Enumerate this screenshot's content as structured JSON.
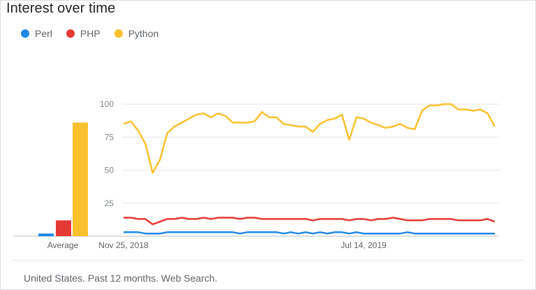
{
  "title": "Interest over time",
  "footer": "United States. Past 12 months. Web Search.",
  "legend": [
    {
      "name": "Perl",
      "color": "#1e88e5"
    },
    {
      "name": "PHP",
      "color": "#e53935"
    },
    {
      "name": "Python",
      "color": "#fbc02d"
    }
  ],
  "chart_data": [
    {
      "type": "bar",
      "categories": [
        "Average"
      ],
      "series": [
        {
          "name": "Perl",
          "values": [
            2
          ]
        },
        {
          "name": "PHP",
          "values": [
            12
          ]
        },
        {
          "name": "Python",
          "values": [
            86
          ]
        }
      ],
      "ylim": [
        0,
        100
      ]
    },
    {
      "type": "line",
      "x_ticks": [
        "Nov 25, 2018",
        "Jul 14, 2019"
      ],
      "y_ticks": [
        25,
        50,
        75,
        100
      ],
      "ylim": [
        0,
        100
      ],
      "grid": true,
      "series": [
        {
          "name": "Python",
          "color": "#fbc02d",
          "values": [
            85,
            87,
            80,
            70,
            48,
            58,
            78,
            83,
            86,
            89,
            92,
            93,
            90,
            93,
            91,
            86,
            86,
            86,
            87,
            94,
            90,
            90,
            85,
            84,
            83,
            83,
            79,
            85,
            88,
            89,
            92,
            73,
            90,
            89,
            86,
            84,
            82,
            83,
            85,
            82,
            81,
            95,
            99,
            99,
            100,
            100,
            96,
            96,
            95,
            96,
            93,
            83
          ]
        },
        {
          "name": "PHP",
          "color": "#e53935",
          "values": [
            14,
            14,
            13,
            13,
            9,
            11,
            13,
            13,
            14,
            13,
            13,
            14,
            13,
            14,
            14,
            14,
            13,
            14,
            14,
            13,
            13,
            13,
            13,
            13,
            13,
            13,
            12,
            13,
            13,
            13,
            13,
            12,
            13,
            13,
            12,
            13,
            13,
            14,
            13,
            12,
            12,
            12,
            13,
            13,
            13,
            13,
            12,
            12,
            12,
            12,
            13,
            11
          ]
        },
        {
          "name": "Perl",
          "color": "#1e88e5",
          "values": [
            3,
            3,
            3,
            2,
            2,
            2,
            3,
            3,
            3,
            3,
            3,
            3,
            3,
            3,
            3,
            3,
            2,
            3,
            3,
            3,
            3,
            3,
            2,
            3,
            2,
            3,
            2,
            3,
            2,
            3,
            3,
            2,
            3,
            2,
            2,
            2,
            2,
            2,
            2,
            3,
            2,
            2,
            2,
            2,
            2,
            2,
            2,
            2,
            2,
            2,
            2,
            2
          ]
        }
      ]
    }
  ]
}
